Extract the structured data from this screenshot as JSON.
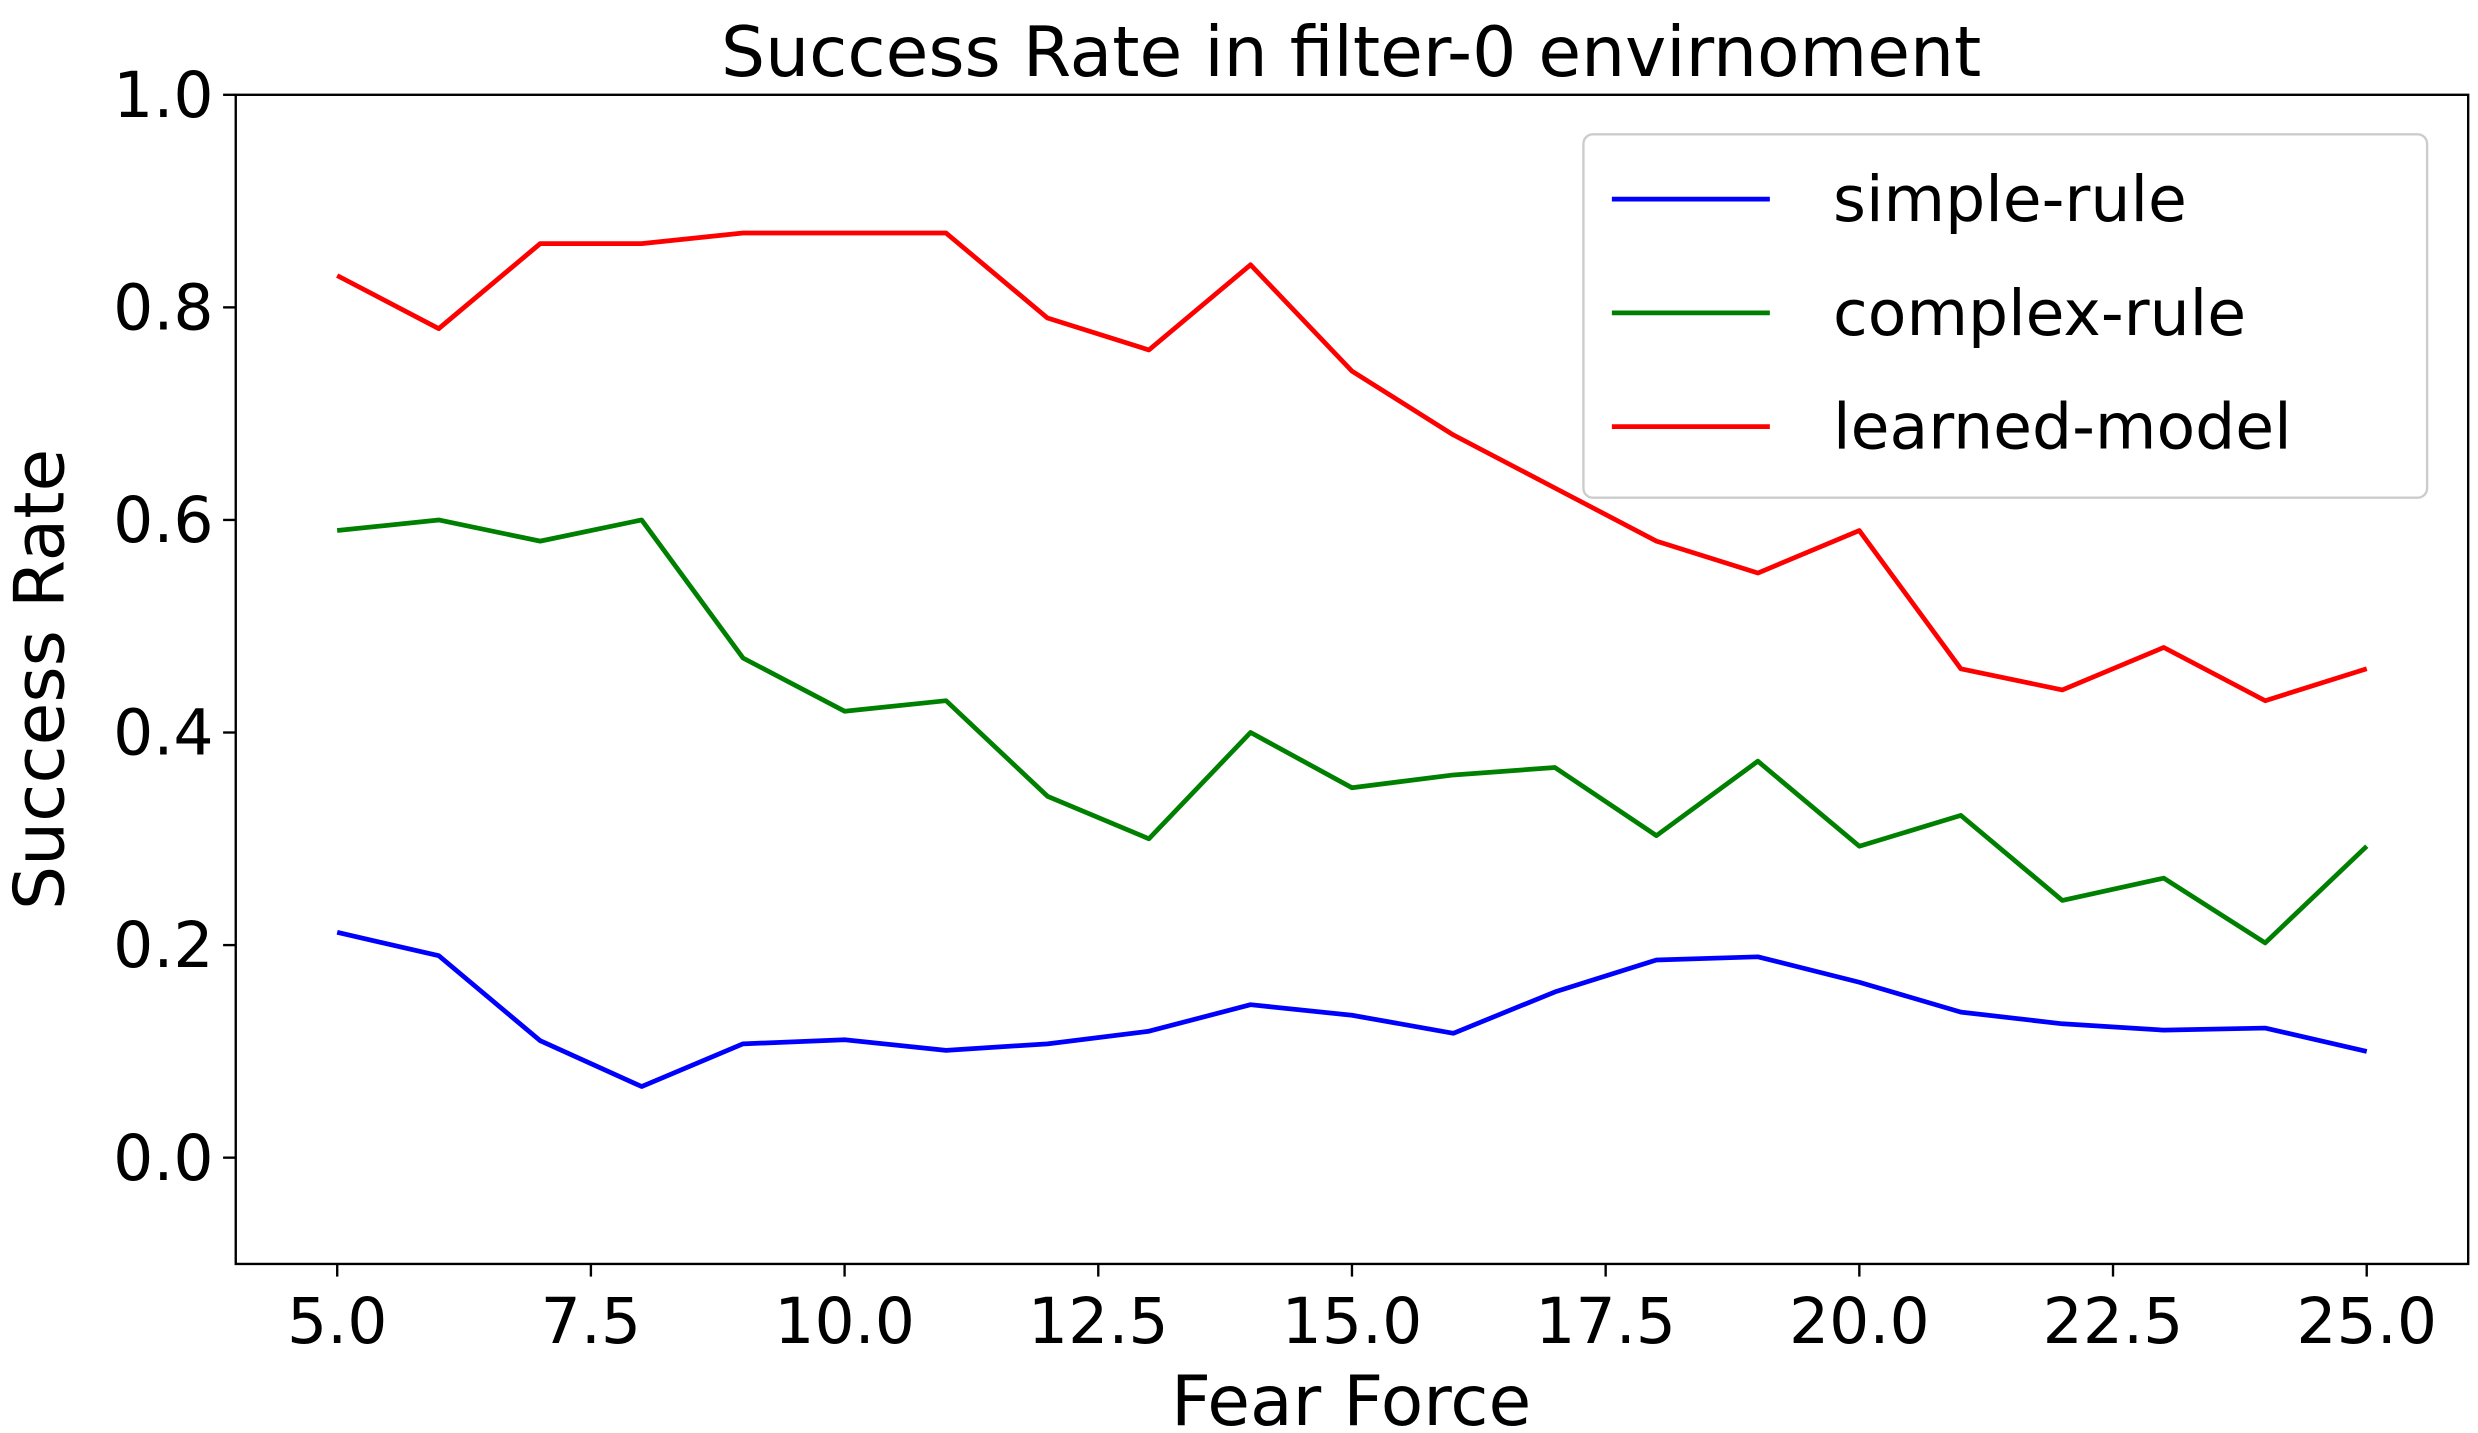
{
  "chart_data": {
    "type": "line",
    "title": "Success Rate in filter-0 envirnoment",
    "xlabel": "Fear Force",
    "ylabel": "Success Rate",
    "xlim": [
      4.0,
      26.0
    ],
    "ylim": [
      -0.1,
      1.0
    ],
    "xticks": [
      5.0,
      7.5,
      10.0,
      12.5,
      15.0,
      17.5,
      20.0,
      22.5,
      25.0
    ],
    "xtick_labels": [
      "5.0",
      "7.5",
      "10.0",
      "12.5",
      "15.0",
      "17.5",
      "20.0",
      "22.5",
      "25.0"
    ],
    "yticks": [
      0.0,
      0.2,
      0.4,
      0.6,
      0.8,
      1.0
    ],
    "ytick_labels": [
      "0.0",
      "0.2",
      "0.4",
      "0.6",
      "0.8",
      "1.0"
    ],
    "grid": false,
    "legend_position": "top-right",
    "x": [
      5,
      6,
      7,
      8,
      9,
      10,
      11,
      12,
      13,
      14,
      15,
      16,
      17,
      18,
      19,
      20,
      21,
      22,
      23,
      24,
      25
    ],
    "series": [
      {
        "name": "simple-rule",
        "color": "#0000ff",
        "values": [
          0.212,
          0.19,
          0.11,
          0.067,
          0.107,
          0.111,
          0.101,
          0.107,
          0.119,
          0.144,
          0.134,
          0.117,
          0.156,
          0.186,
          0.189,
          0.165,
          0.137,
          0.126,
          0.12,
          0.122,
          0.1
        ]
      },
      {
        "name": "complex-rule",
        "color": "#008000",
        "values": [
          0.59,
          0.6,
          0.58,
          0.6,
          0.47,
          0.42,
          0.43,
          0.34,
          0.3,
          0.4,
          0.348,
          0.36,
          0.367,
          0.303,
          0.373,
          0.293,
          0.322,
          0.242,
          0.263,
          0.202,
          0.293
        ]
      },
      {
        "name": "learned-model",
        "color": "#ff0000",
        "values": [
          0.83,
          0.78,
          0.86,
          0.86,
          0.87,
          0.87,
          0.87,
          0.79,
          0.76,
          0.84,
          0.74,
          0.68,
          0.63,
          0.58,
          0.55,
          0.59,
          0.46,
          0.44,
          0.48,
          0.43,
          0.46
        ]
      }
    ]
  }
}
